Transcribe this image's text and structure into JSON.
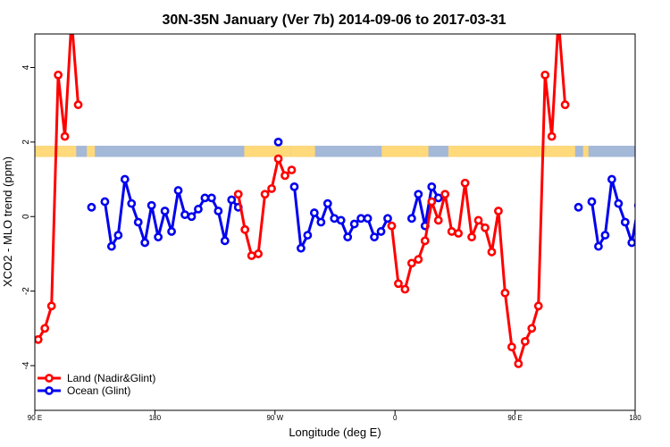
{
  "chart_data": {
    "type": "line",
    "title": "30N-35N January (Ver 7b)   2014-09-06 to 2017-03-31",
    "xlabel": "Longitude (deg E)",
    "ylabel": "XCO2 - MLO trend (ppm)",
    "xlim": [
      90,
      540
    ],
    "ylim": [
      -5.2,
      4.9
    ],
    "x_ticks": [
      {
        "value": 90,
        "label": "90 E"
      },
      {
        "value": 180,
        "label": "180"
      },
      {
        "value": 270,
        "label": "90 W"
      },
      {
        "value": 360,
        "label": "0"
      },
      {
        "value": 450,
        "label": "90 E"
      },
      {
        "value": 540,
        "label": "180"
      }
    ],
    "y_ticks": [
      {
        "value": -4,
        "label": "-4"
      },
      {
        "value": -2,
        "label": "-2"
      },
      {
        "value": 0,
        "label": "0"
      },
      {
        "value": 2,
        "label": "2"
      },
      {
        "value": 4,
        "label": "4"
      }
    ],
    "landmask_band": {
      "y_bottom": 1.6,
      "y_top": 1.9,
      "land_color": "#ffd97a",
      "ocean_color": "#a4b8d8",
      "land_ranges": [
        [
          90,
          121
        ],
        [
          129,
          135
        ],
        [
          247,
          282
        ],
        [
          282,
          300
        ],
        [
          350,
          385
        ],
        [
          400,
          495
        ],
        [
          501,
          505
        ]
      ]
    },
    "series": [
      {
        "name": "Land (Nadir&Glint)",
        "color": "#ff0000",
        "segments": [
          [
            [
              92.5,
              -3.3
            ],
            [
              97.5,
              -3.0
            ],
            [
              102.5,
              -2.4
            ],
            [
              107.5,
              3.8
            ],
            [
              112.5,
              2.15
            ],
            [
              117.5,
              5.3
            ],
            [
              122.5,
              3.0
            ]
          ],
          [
            [
              242.5,
              0.6
            ],
            [
              247.5,
              -0.35
            ],
            [
              252.5,
              -1.05
            ],
            [
              257.5,
              -1.0
            ],
            [
              262.5,
              0.6
            ],
            [
              267.5,
              0.75
            ],
            [
              272.5,
              1.55
            ],
            [
              277.5,
              1.1
            ],
            [
              282.5,
              1.25
            ]
          ],
          [
            [
              357.5,
              -0.25
            ],
            [
              362.5,
              -1.8
            ],
            [
              367.5,
              -1.95
            ],
            [
              372.5,
              -1.25
            ],
            [
              377.5,
              -1.15
            ],
            [
              382.5,
              -0.65
            ],
            [
              387.5,
              0.4
            ],
            [
              392.5,
              -0.1
            ],
            [
              397.5,
              0.6
            ],
            [
              402.5,
              -0.4
            ],
            [
              407.5,
              -0.45
            ],
            [
              412.5,
              0.9
            ],
            [
              417.5,
              -0.55
            ],
            [
              422.5,
              -0.1
            ],
            [
              427.5,
              -0.3
            ],
            [
              432.5,
              -0.95
            ],
            [
              437.5,
              0.15
            ],
            [
              442.5,
              -2.05
            ],
            [
              447.5,
              -3.5
            ],
            [
              452.5,
              -3.95
            ],
            [
              457.5,
              -3.35
            ],
            [
              462.5,
              -3.0
            ],
            [
              467.5,
              -2.4
            ],
            [
              472.5,
              3.8
            ],
            [
              477.5,
              2.15
            ],
            [
              482.5,
              5.3
            ],
            [
              487.5,
              3.0
            ]
          ]
        ]
      },
      {
        "name": "Ocean (Glint)",
        "color": "#0000ee",
        "segments": [
          [
            [
              132.5,
              0.25
            ]
          ],
          [
            [
              142.5,
              0.4
            ],
            [
              147.5,
              -0.8
            ],
            [
              152.5,
              -0.5
            ],
            [
              157.5,
              1.0
            ],
            [
              162.5,
              0.35
            ],
            [
              167.5,
              -0.15
            ],
            [
              172.5,
              -0.7
            ],
            [
              177.5,
              0.3
            ],
            [
              182.5,
              -0.55
            ],
            [
              187.5,
              0.15
            ],
            [
              192.5,
              -0.4
            ],
            [
              197.5,
              0.7
            ],
            [
              202.5,
              0.05
            ],
            [
              207.5,
              0.0
            ],
            [
              212.5,
              0.2
            ],
            [
              217.5,
              0.5
            ],
            [
              222.5,
              0.5
            ],
            [
              227.5,
              0.15
            ],
            [
              232.5,
              -0.65
            ],
            [
              237.5,
              0.45
            ],
            [
              242.5,
              0.25
            ]
          ],
          [
            [
              272.5,
              2.0
            ]
          ],
          [
            [
              284.5,
              0.8
            ],
            [
              289.5,
              -0.85
            ],
            [
              294.5,
              -0.5
            ],
            [
              299.5,
              0.1
            ],
            [
              304.5,
              -0.15
            ],
            [
              309.5,
              0.35
            ],
            [
              314.5,
              -0.05
            ],
            [
              319.5,
              -0.1
            ],
            [
              324.5,
              -0.55
            ],
            [
              329.5,
              -0.2
            ],
            [
              334.5,
              -0.05
            ],
            [
              339.5,
              -0.05
            ],
            [
              344.5,
              -0.55
            ],
            [
              349.5,
              -0.4
            ],
            [
              354.5,
              -0.05
            ]
          ],
          [
            [
              372.5,
              -0.05
            ],
            [
              377.5,
              0.6
            ],
            [
              382.5,
              -0.25
            ],
            [
              387.5,
              0.8
            ],
            [
              392.5,
              0.5
            ]
          ],
          [
            [
              497.5,
              0.25
            ]
          ],
          [
            [
              507.5,
              0.4
            ],
            [
              512.5,
              -0.8
            ],
            [
              517.5,
              -0.5
            ],
            [
              522.5,
              1.0
            ],
            [
              527.5,
              0.35
            ],
            [
              532.5,
              -0.15
            ],
            [
              537.5,
              -0.7
            ],
            [
              542.5,
              0.3
            ]
          ]
        ]
      }
    ],
    "legend": {
      "placement": "bottom-left",
      "entries": [
        "Land (Nadir&Glint)",
        "Ocean (Glint)"
      ]
    }
  }
}
